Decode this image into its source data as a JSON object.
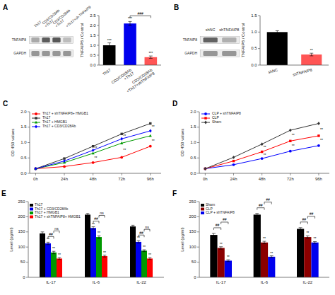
{
  "chart_data": [
    {
      "type": "blot",
      "title": "A",
      "categories": [
        "Th17",
        "CD3/CD28Ab\n+Th17",
        "CD3/CD28Ab\n+Th17",
        "+Th17+sh-TNFAIP8"
      ],
      "series": [
        {
          "name": "TNFAIP8",
          "values": [
            0.45,
            0.85,
            0.88,
            0.35
          ]
        },
        {
          "name": "GAPDH",
          "values": [
            0.55,
            0.55,
            0.55,
            0.55
          ]
        }
      ]
    },
    {
      "type": "bar",
      "categories": [
        "Th17",
        "CD3/CD28Ab\n+Th17",
        "CD3/CD28Ab\n+Th17+shTNFAIP8"
      ],
      "values": [
        1.0,
        2.1,
        0.4
      ],
      "errors": [
        0.12,
        0.1,
        0.06
      ],
      "colors": [
        "#000000",
        "#0000ee",
        "#ff5555"
      ],
      "ylabel": "TNFAIP8 / Control",
      "ylim": [
        0,
        2.5
      ],
      "yticks": [
        {
          "value": 0,
          "label": "0.0"
        },
        0.5,
        {
          "value": 1.0,
          "label": "1.0"
        },
        1.5,
        {
          "value": 2.0,
          "label": "2.0"
        },
        2.5
      ],
      "annotations": [
        {
          "text": "***",
          "at": [
            0
          ]
        },
        {
          "text": "***",
          "at": [
            1
          ]
        },
        {
          "text": "***",
          "at": [
            2
          ]
        },
        {
          "text": "###",
          "at": [
            1,
            2
          ]
        }
      ]
    },
    {
      "type": "blot",
      "title": "B",
      "categories": [
        "shNC",
        "shTNFAIP8"
      ],
      "series": [
        {
          "name": "TNFAIP8",
          "values": [
            0.82,
            0.42
          ]
        },
        {
          "name": "GAPDH",
          "values": [
            0.55,
            0.55
          ]
        }
      ]
    },
    {
      "type": "bar",
      "categories": [
        "shNC",
        "shTNFAIP8"
      ],
      "values": [
        1.0,
        0.32
      ],
      "errors": [
        0.04,
        0.04
      ],
      "colors": [
        "#000000",
        "#ff5555"
      ],
      "ylabel": "TNFAIP8 / Control",
      "ylim": [
        0,
        1.5
      ],
      "yticks": [
        {
          "value": 0.0,
          "label": "0.0"
        },
        0.5,
        {
          "value": 1.0,
          "label": "1.0"
        },
        1.5
      ],
      "annotations": [
        {
          "text": "**",
          "at": [
            1
          ]
        }
      ]
    },
    {
      "type": "line",
      "title": "C",
      "x": [
        0,
        24,
        48,
        72,
        96
      ],
      "xlim": [
        -5,
        105
      ],
      "xticks": [
        {
          "value": 0,
          "label": "0h"
        },
        {
          "value": 24,
          "label": "24h"
        },
        {
          "value": 48,
          "label": "48h"
        },
        {
          "value": 72,
          "label": "72h"
        },
        {
          "value": 96,
          "label": "96h"
        }
      ],
      "series": [
        {
          "name": "Th17 + shTNFAIP8+ HMGB1",
          "color": "#ff0000",
          "marker": "circle",
          "values": [
            0.15,
            0.22,
            0.35,
            0.52,
            0.88
          ]
        },
        {
          "name": "Th17",
          "color": "#333333",
          "marker": "square",
          "values": [
            0.15,
            0.48,
            0.88,
            1.28,
            1.62
          ]
        },
        {
          "name": "Th17 + HMGB1",
          "color": "#009900",
          "marker": "triangle",
          "values": [
            0.15,
            0.35,
            0.65,
            0.98,
            1.22
          ]
        },
        {
          "name": "Th17 + CD3/CD28Ab",
          "color": "#0000ff",
          "marker": "diamond",
          "values": [
            0.15,
            0.4,
            0.75,
            1.12,
            1.38
          ]
        }
      ],
      "ylabel": "OD 450 values",
      "ylim": [
        0,
        2.0
      ],
      "yticks": [
        {
          "value": 0,
          "label": "0.0"
        },
        0.5,
        {
          "value": 1.0,
          "label": "1.0"
        },
        1.5,
        {
          "value": 2.0,
          "label": "2.0"
        }
      ],
      "legend": "upper left",
      "annotations": [
        {
          "text": "**",
          "x": 48,
          "at": [
            1,
            3
          ]
        },
        {
          "text": "**",
          "x": 72,
          "at": [
            1,
            3
          ]
        },
        {
          "text": "**",
          "x": 96,
          "at": [
            1,
            3
          ]
        },
        {
          "text": "**",
          "x": 48,
          "at": [
            2,
            0
          ]
        },
        {
          "text": "**",
          "x": 72,
          "at": [
            2,
            0
          ]
        },
        {
          "text": "**",
          "x": 96,
          "at": [
            2,
            0
          ]
        }
      ]
    },
    {
      "type": "line",
      "title": "D",
      "x": [
        0,
        24,
        48,
        72,
        96
      ],
      "xlim": [
        -5,
        105
      ],
      "xticks": [
        {
          "value": 0,
          "label": "0h"
        },
        {
          "value": 24,
          "label": "24h"
        },
        {
          "value": 48,
          "label": "48h"
        },
        {
          "value": 72,
          "label": "72h"
        },
        {
          "value": 96,
          "label": "96h"
        }
      ],
      "series": [
        {
          "name": "CLP + shTNFAIP8",
          "color": "#0000ff",
          "marker": "circle",
          "values": [
            0.15,
            0.28,
            0.48,
            0.72,
            0.9
          ]
        },
        {
          "name": "CLP",
          "color": "#ff0000",
          "marker": "square",
          "values": [
            0.15,
            0.4,
            0.7,
            1.05,
            1.22
          ]
        },
        {
          "name": "Sham",
          "color": "#333333",
          "marker": "diamond",
          "values": [
            0.15,
            0.52,
            0.95,
            1.4,
            1.62
          ]
        }
      ],
      "ylabel": "OD 450 values",
      "ylim": [
        0,
        2.0
      ],
      "yticks": [
        {
          "value": 0,
          "label": "0.0"
        },
        0.5,
        {
          "value": 1.0,
          "label": "1.0"
        },
        1.5,
        {
          "value": 2.0,
          "label": "2.0"
        }
      ],
      "legend": "upper left",
      "annotations": [
        {
          "text": "**",
          "x": 48,
          "at": [
            2,
            1
          ]
        },
        {
          "text": "**",
          "x": 72,
          "at": [
            2,
            1
          ]
        },
        {
          "text": "**",
          "x": 96,
          "at": [
            2,
            1
          ]
        },
        {
          "text": "**",
          "x": 48,
          "at": [
            1,
            0
          ]
        },
        {
          "text": "**",
          "x": 72,
          "at": [
            1,
            0
          ]
        },
        {
          "text": "**",
          "x": 96,
          "at": [
            1,
            0
          ]
        }
      ]
    },
    {
      "type": "bar",
      "title": "E",
      "categories": [
        "IL-17",
        "IL-6",
        "IL-22"
      ],
      "series": [
        {
          "name": "Th17",
          "color": "#000000",
          "values": [
            145,
            207,
            168
          ],
          "errors": [
            5,
            4,
            4
          ]
        },
        {
          "name": "Th17 + CD3/CD28Ab",
          "color": "#0000ee",
          "values": [
            112,
            163,
            117
          ],
          "errors": [
            4,
            4,
            4
          ]
        },
        {
          "name": "Th17 + HMGB1",
          "color": "#009900",
          "values": [
            82,
            133,
            88
          ],
          "errors": [
            4,
            4,
            3
          ]
        },
        {
          "name": "Th17 + shTNFAIP8+ HMGB1",
          "color": "#ff0000",
          "values": [
            62,
            70,
            62
          ],
          "errors": [
            3,
            3,
            3
          ]
        }
      ],
      "ylabel": "Level (pg/ml)",
      "ylim": [
        0,
        250
      ],
      "yticks": [
        0,
        50,
        100,
        150,
        200,
        250
      ],
      "legend": "upper left",
      "annotations": [
        {
          "text": "**",
          "category": 0,
          "at": [
            1
          ]
        },
        {
          "text": "**",
          "category": 0,
          "at": [
            2
          ]
        },
        {
          "text": "**",
          "category": 0,
          "at": [
            3
          ]
        },
        {
          "text": "##",
          "category": 0,
          "at": [
            1,
            2
          ]
        },
        {
          "text": "ns",
          "category": 0,
          "at": [
            2,
            3
          ]
        },
        {
          "text": "**",
          "category": 1,
          "at": [
            1
          ]
        },
        {
          "text": "**",
          "category": 1,
          "at": [
            2
          ]
        },
        {
          "text": "**",
          "category": 1,
          "at": [
            3
          ]
        },
        {
          "text": "##",
          "category": 1,
          "at": [
            1,
            2
          ]
        },
        {
          "text": "ns",
          "category": 1,
          "at": [
            2,
            3
          ]
        },
        {
          "text": "**",
          "category": 2,
          "at": [
            1
          ]
        },
        {
          "text": "**",
          "category": 2,
          "at": [
            2
          ]
        },
        {
          "text": "**",
          "category": 2,
          "at": [
            3
          ]
        },
        {
          "text": "##",
          "category": 2,
          "at": [
            1,
            2
          ]
        },
        {
          "text": "ns",
          "category": 2,
          "at": [
            2,
            3
          ]
        }
      ]
    },
    {
      "type": "bar",
      "title": "F",
      "categories": [
        "IL-17",
        "IL-6",
        "IL-22"
      ],
      "series": [
        {
          "name": "Sham",
          "color": "#000000",
          "values": [
            140,
            207,
            160
          ],
          "errors": [
            5,
            4,
            4
          ]
        },
        {
          "name": "CLP",
          "color": "#8b0000",
          "values": [
            97,
            115,
            133
          ],
          "errors": [
            4,
            4,
            4
          ]
        },
        {
          "name": "CLP + shTNFAIP8",
          "color": "#0000ee",
          "values": [
            55,
            68,
            115
          ],
          "errors": [
            3,
            3,
            3
          ]
        }
      ],
      "ylabel": "Level (pg/ml)",
      "ylim": [
        0,
        250
      ],
      "yticks": [
        0,
        50,
        100,
        150,
        200,
        250
      ],
      "legend": "upper left",
      "annotations": [
        {
          "text": "**",
          "category": 0,
          "at": [
            1
          ]
        },
        {
          "text": "**",
          "category": 0,
          "at": [
            2
          ]
        },
        {
          "text": "##",
          "category": 0,
          "at": [
            0,
            1
          ]
        },
        {
          "text": "##",
          "category": 0,
          "at": [
            1,
            2
          ]
        },
        {
          "text": "**",
          "category": 1,
          "at": [
            1
          ]
        },
        {
          "text": "**",
          "category": 1,
          "at": [
            2
          ]
        },
        {
          "text": "##",
          "category": 1,
          "at": [
            0,
            1
          ]
        },
        {
          "text": "##",
          "category": 1,
          "at": [
            1,
            2
          ]
        },
        {
          "text": "**",
          "category": 2,
          "at": [
            1
          ]
        },
        {
          "text": "**",
          "category": 2,
          "at": [
            2
          ]
        },
        {
          "text": "##",
          "category": 2,
          "at": [
            0,
            1
          ]
        },
        {
          "text": "##",
          "category": 2,
          "at": [
            1,
            2
          ]
        }
      ]
    }
  ]
}
